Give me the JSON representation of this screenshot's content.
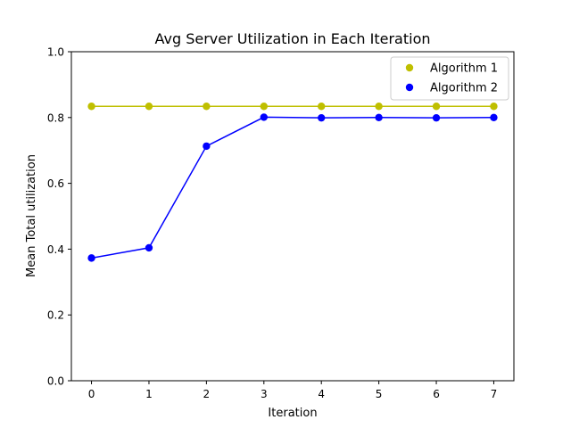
{
  "chart_data": {
    "type": "line",
    "title": "Avg Server Utilization in Each Iteration",
    "xlabel": "Iteration",
    "ylabel": "Mean Total utilization",
    "x": [
      0,
      1,
      2,
      3,
      4,
      5,
      6,
      7
    ],
    "xticks": [
      "0",
      "1",
      "2",
      "3",
      "4",
      "5",
      "6",
      "7"
    ],
    "yticks": [
      "0.0",
      "0.2",
      "0.4",
      "0.6",
      "0.8",
      "1.0"
    ],
    "xlim": [
      -0.35,
      7.35
    ],
    "ylim": [
      0.0,
      1.0
    ],
    "grid": false,
    "legend_position": "top-right",
    "series": [
      {
        "name": "Algorithm 1",
        "color": "#bfbf00",
        "values": [
          0.834,
          0.834,
          0.834,
          0.834,
          0.834,
          0.834,
          0.834,
          0.834
        ]
      },
      {
        "name": "Algorithm 2",
        "color": "#0000ff",
        "values": [
          0.373,
          0.404,
          0.713,
          0.801,
          0.799,
          0.8,
          0.799,
          0.8
        ]
      }
    ]
  }
}
